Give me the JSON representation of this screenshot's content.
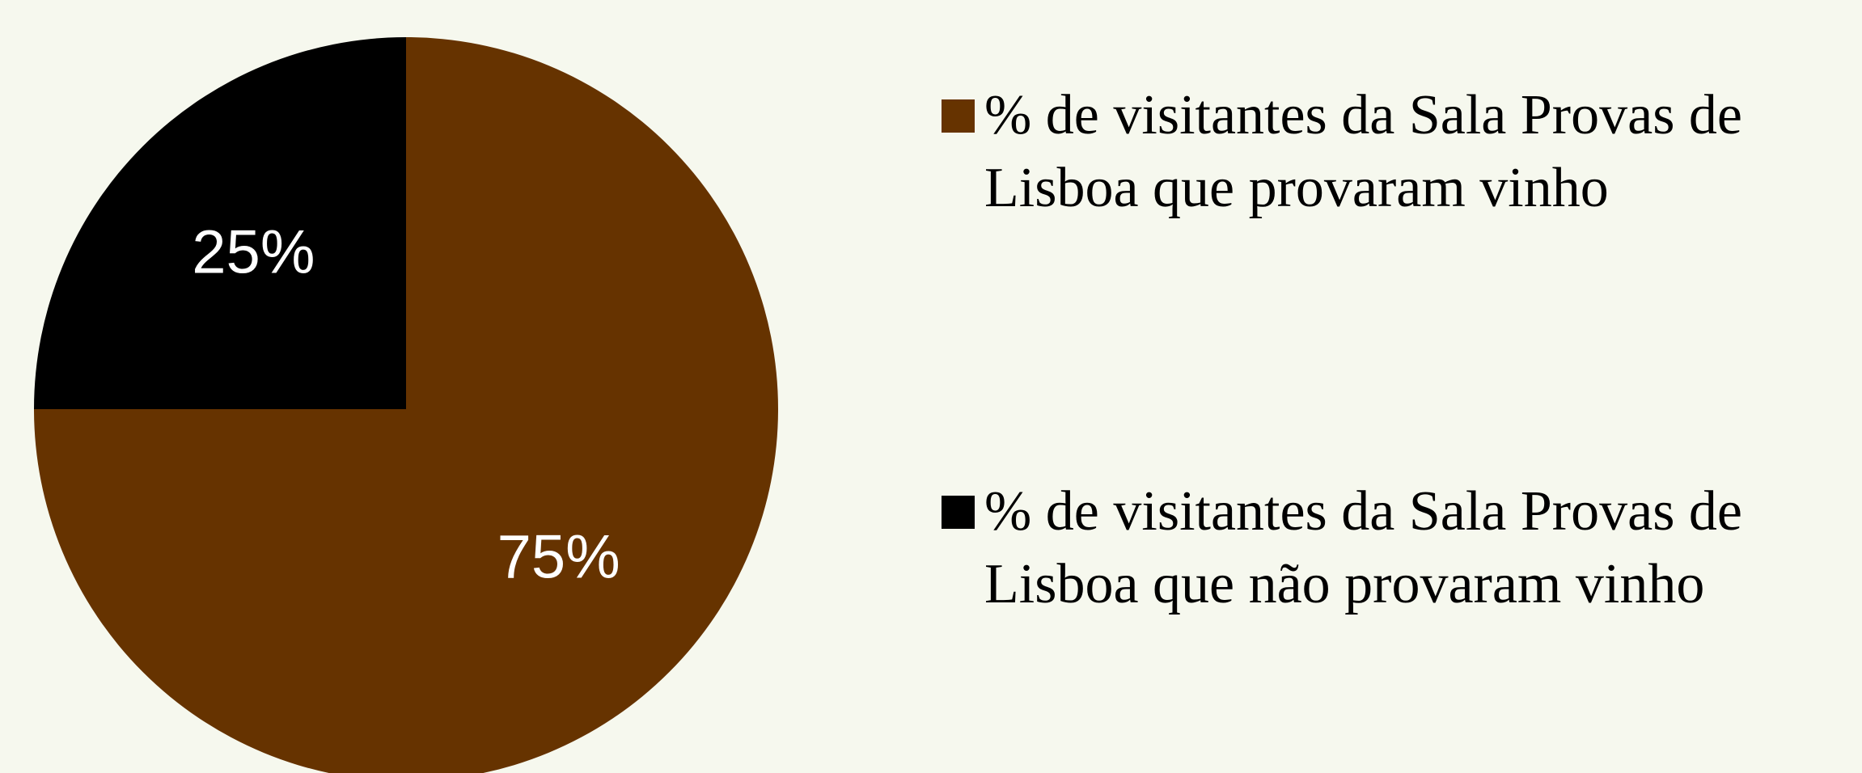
{
  "chart_data": {
    "type": "pie",
    "categories": [
      "% de visitantes da Sala Provas de  Lisboa que provaram vinho",
      "% de visitantes da Sala Provas de  Lisboa que não provaram vinho"
    ],
    "values": [
      75,
      25
    ],
    "value_labels": [
      "75%",
      "25%"
    ],
    "colors": [
      "#663300",
      "#000000"
    ],
    "legend": "right"
  }
}
